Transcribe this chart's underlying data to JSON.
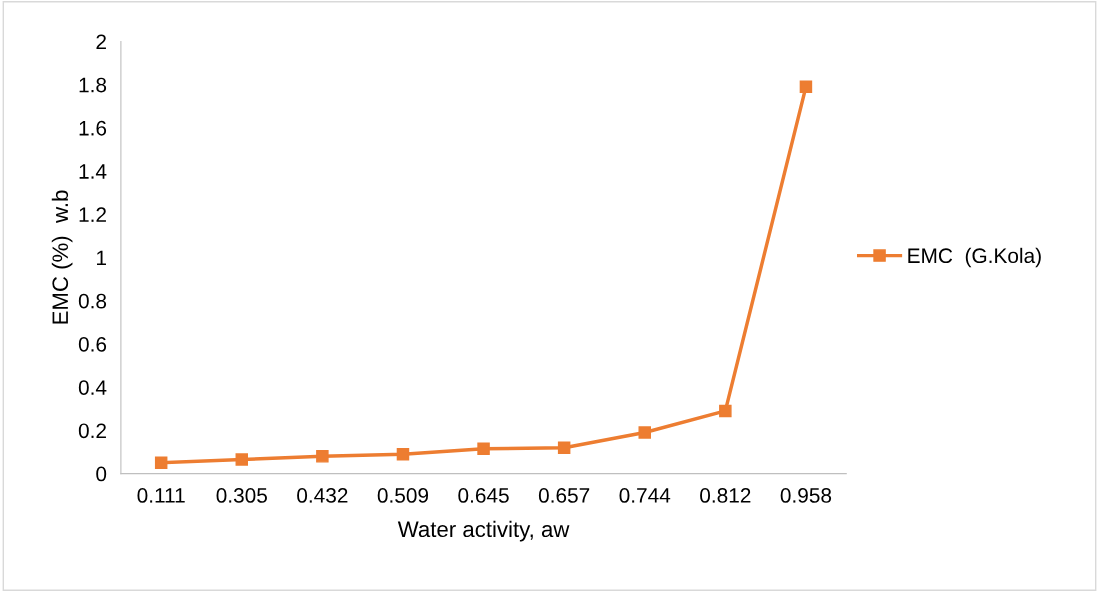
{
  "chart_data": {
    "type": "line",
    "xlabel": "Water activity, aw",
    "ylabel": "EMC (%)  w.b",
    "categories": [
      "0.111",
      "0.305",
      "0.432",
      "0.509",
      "0.645",
      "0.657",
      "0.744",
      "0.812",
      "0.958"
    ],
    "series": [
      {
        "name": "EMC  (G.Kola)",
        "color": "#ed7d31",
        "values": [
          0.05,
          0.065,
          0.08,
          0.09,
          0.115,
          0.12,
          0.19,
          0.29,
          1.79
        ]
      }
    ],
    "ylim": [
      0,
      2
    ],
    "yticks": [
      0,
      0.2,
      0.4,
      0.6,
      0.8,
      1,
      1.2,
      1.4,
      1.6,
      1.8,
      2
    ],
    "marker": "square",
    "line_style": "solid",
    "grid": false,
    "legend": "right"
  }
}
